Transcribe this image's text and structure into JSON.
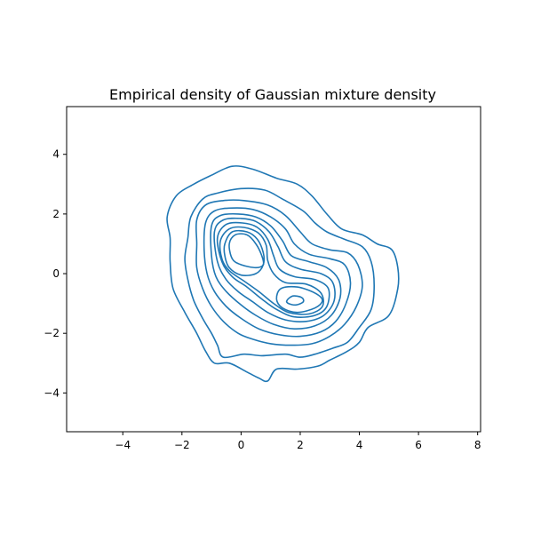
{
  "chart_data": {
    "type": "contour",
    "title": "Empirical density of Gaussian mixture density",
    "xlabel": "",
    "ylabel": "",
    "xlim": [
      -5.9,
      8.1
    ],
    "ylim": [
      -5.3,
      5.6
    ],
    "xticks": [
      -4,
      -2,
      0,
      2,
      4,
      6,
      8
    ],
    "yticks": [
      -4,
      -2,
      0,
      2,
      4
    ],
    "grid": false,
    "legend": "none",
    "line_color": "#1f77b4",
    "levels": [
      {
        "name": "level-1",
        "points": [
          [
            -2.5,
            1.9
          ],
          [
            -2.2,
            2.6
          ],
          [
            -1.6,
            3.0
          ],
          [
            -1.0,
            3.3
          ],
          [
            -0.3,
            3.6
          ],
          [
            0.4,
            3.5
          ],
          [
            1.2,
            3.2
          ],
          [
            1.9,
            3.0
          ],
          [
            2.4,
            2.6
          ],
          [
            2.9,
            2.0
          ],
          [
            3.4,
            1.5
          ],
          [
            4.1,
            1.3
          ],
          [
            4.6,
            1.0
          ],
          [
            5.1,
            0.8
          ],
          [
            5.3,
            0.2
          ],
          [
            5.3,
            -0.5
          ],
          [
            5.0,
            -1.4
          ],
          [
            4.3,
            -1.8
          ],
          [
            4.0,
            -2.3
          ],
          [
            3.6,
            -2.6
          ],
          [
            3.0,
            -2.9
          ],
          [
            2.6,
            -3.1
          ],
          [
            1.9,
            -3.2
          ],
          [
            1.2,
            -3.2
          ],
          [
            0.9,
            -3.6
          ],
          [
            0.6,
            -3.5
          ],
          [
            0.2,
            -3.3
          ],
          [
            -0.4,
            -3.0
          ],
          [
            -0.9,
            -3.0
          ],
          [
            -1.2,
            -2.6
          ],
          [
            -1.5,
            -2.0
          ],
          [
            -1.9,
            -1.3
          ],
          [
            -2.3,
            -0.5
          ],
          [
            -2.4,
            0.4
          ],
          [
            -2.4,
            1.2
          ],
          [
            -2.5,
            1.9
          ]
        ]
      },
      {
        "name": "level-2",
        "points": [
          [
            -1.7,
            1.9
          ],
          [
            -1.3,
            2.5
          ],
          [
            -0.8,
            2.7
          ],
          [
            0.0,
            2.85
          ],
          [
            0.8,
            2.8
          ],
          [
            1.4,
            2.5
          ],
          [
            2.1,
            2.1
          ],
          [
            2.5,
            1.7
          ],
          [
            2.9,
            1.4
          ],
          [
            3.5,
            1.15
          ],
          [
            4.1,
            0.9
          ],
          [
            4.4,
            0.4
          ],
          [
            4.5,
            -0.4
          ],
          [
            4.4,
            -1.2
          ],
          [
            4.0,
            -1.8
          ],
          [
            3.6,
            -2.3
          ],
          [
            3.1,
            -2.5
          ],
          [
            2.5,
            -2.7
          ],
          [
            2.0,
            -2.8
          ],
          [
            1.5,
            -2.7
          ],
          [
            0.7,
            -2.75
          ],
          [
            0.1,
            -2.7
          ],
          [
            -0.6,
            -2.8
          ],
          [
            -0.8,
            -2.4
          ],
          [
            -1.0,
            -2.0
          ],
          [
            -1.3,
            -1.5
          ],
          [
            -1.6,
            -0.9
          ],
          [
            -1.8,
            -0.2
          ],
          [
            -1.9,
            0.5
          ],
          [
            -1.8,
            1.2
          ],
          [
            -1.7,
            1.9
          ]
        ]
      },
      {
        "name": "level-3",
        "points": [
          [
            -1.5,
            1.8
          ],
          [
            -1.2,
            2.3
          ],
          [
            -0.6,
            2.45
          ],
          [
            0.1,
            2.45
          ],
          [
            0.9,
            2.3
          ],
          [
            1.5,
            1.95
          ],
          [
            2.0,
            1.4
          ],
          [
            2.4,
            1.0
          ],
          [
            3.0,
            0.8
          ],
          [
            3.6,
            0.7
          ],
          [
            3.95,
            0.3
          ],
          [
            4.1,
            -0.4
          ],
          [
            3.9,
            -1.1
          ],
          [
            3.5,
            -1.7
          ],
          [
            3.0,
            -2.1
          ],
          [
            2.4,
            -2.35
          ],
          [
            1.7,
            -2.4
          ],
          [
            1.0,
            -2.35
          ],
          [
            0.4,
            -2.2
          ],
          [
            -0.1,
            -2.0
          ],
          [
            -0.6,
            -1.6
          ],
          [
            -1.0,
            -1.1
          ],
          [
            -1.3,
            -0.5
          ],
          [
            -1.5,
            0.2
          ],
          [
            -1.5,
            1.0
          ],
          [
            -1.5,
            1.8
          ]
        ]
      },
      {
        "name": "level-4",
        "points": [
          [
            -1.2,
            1.7
          ],
          [
            -0.9,
            2.1
          ],
          [
            -0.3,
            2.2
          ],
          [
            0.4,
            2.15
          ],
          [
            1.0,
            1.9
          ],
          [
            1.5,
            1.5
          ],
          [
            1.8,
            1.0
          ],
          [
            2.3,
            0.65
          ],
          [
            3.0,
            0.5
          ],
          [
            3.5,
            0.3
          ],
          [
            3.7,
            -0.3
          ],
          [
            3.55,
            -1.0
          ],
          [
            3.2,
            -1.6
          ],
          [
            2.7,
            -1.95
          ],
          [
            2.0,
            -2.1
          ],
          [
            1.3,
            -2.05
          ],
          [
            0.6,
            -1.85
          ],
          [
            0.0,
            -1.5
          ],
          [
            -0.5,
            -1.1
          ],
          [
            -0.9,
            -0.6
          ],
          [
            -1.15,
            0.0
          ],
          [
            -1.25,
            0.8
          ],
          [
            -1.2,
            1.7
          ]
        ]
      },
      {
        "name": "level-5",
        "points": [
          [
            -1.0,
            1.6
          ],
          [
            -0.7,
            1.95
          ],
          [
            -0.1,
            2.0
          ],
          [
            0.5,
            1.9
          ],
          [
            1.0,
            1.6
          ],
          [
            1.4,
            1.1
          ],
          [
            1.7,
            0.6
          ],
          [
            2.3,
            0.4
          ],
          [
            2.9,
            0.2
          ],
          [
            3.3,
            -0.2
          ],
          [
            3.35,
            -0.8
          ],
          [
            3.05,
            -1.4
          ],
          [
            2.5,
            -1.75
          ],
          [
            1.8,
            -1.85
          ],
          [
            1.1,
            -1.7
          ],
          [
            0.5,
            -1.4
          ],
          [
            0.0,
            -1.05
          ],
          [
            -0.5,
            -0.6
          ],
          [
            -0.85,
            -0.1
          ],
          [
            -1.0,
            0.6
          ],
          [
            -1.0,
            1.6
          ]
        ]
      },
      {
        "name": "level-6",
        "points": [
          [
            -0.9,
            1.4
          ],
          [
            -0.6,
            1.8
          ],
          [
            0.0,
            1.85
          ],
          [
            0.5,
            1.75
          ],
          [
            0.95,
            1.4
          ],
          [
            1.25,
            0.9
          ],
          [
            1.5,
            0.4
          ],
          [
            2.0,
            0.15
          ],
          [
            2.7,
            0.0
          ],
          [
            3.1,
            -0.3
          ],
          [
            3.15,
            -0.9
          ],
          [
            2.8,
            -1.4
          ],
          [
            2.2,
            -1.6
          ],
          [
            1.5,
            -1.55
          ],
          [
            0.9,
            -1.3
          ],
          [
            0.4,
            -0.95
          ],
          [
            -0.1,
            -0.6
          ],
          [
            -0.5,
            -0.2
          ],
          [
            -0.8,
            0.4
          ],
          [
            -0.9,
            1.4
          ]
        ]
      },
      {
        "name": "level-7",
        "points": [
          [
            -0.8,
            1.2
          ],
          [
            -0.5,
            1.65
          ],
          [
            0.05,
            1.7
          ],
          [
            0.55,
            1.55
          ],
          [
            0.9,
            1.15
          ],
          [
            1.1,
            0.6
          ],
          [
            1.3,
            0.15
          ],
          [
            1.8,
            -0.1
          ],
          [
            2.5,
            -0.2
          ],
          [
            2.95,
            -0.5
          ],
          [
            2.9,
            -1.1
          ],
          [
            2.5,
            -1.4
          ],
          [
            1.8,
            -1.45
          ],
          [
            1.2,
            -1.2
          ],
          [
            0.7,
            -0.85
          ],
          [
            0.2,
            -0.45
          ],
          [
            -0.3,
            -0.1
          ],
          [
            -0.65,
            0.4
          ],
          [
            -0.8,
            1.2
          ]
        ]
      },
      {
        "name": "level-8",
        "points": [
          [
            -0.7,
            1.1
          ],
          [
            -0.4,
            1.5
          ],
          [
            0.1,
            1.55
          ],
          [
            0.6,
            1.35
          ],
          [
            0.85,
            0.95
          ],
          [
            0.9,
            0.45
          ],
          [
            1.1,
            0.0
          ],
          [
            1.5,
            -0.3
          ],
          [
            2.2,
            -0.35
          ],
          [
            2.7,
            -0.65
          ],
          [
            2.75,
            -1.1
          ],
          [
            2.3,
            -1.35
          ],
          [
            1.6,
            -1.3
          ],
          [
            1.1,
            -1.0
          ],
          [
            0.6,
            -0.6
          ],
          [
            0.1,
            -0.25
          ],
          [
            -0.4,
            0.1
          ],
          [
            -0.65,
            0.5
          ],
          [
            -0.7,
            1.1
          ]
        ]
      },
      {
        "name": "level-9",
        "points": [
          [
            -0.55,
            1.0
          ],
          [
            -0.3,
            1.4
          ],
          [
            0.2,
            1.4
          ],
          [
            0.55,
            1.15
          ],
          [
            0.75,
            0.7
          ],
          [
            0.75,
            0.3
          ],
          [
            0.5,
            0.0
          ],
          [
            0.0,
            -0.05
          ],
          [
            -0.4,
            0.2
          ],
          [
            -0.55,
            0.6
          ],
          [
            -0.55,
            1.0
          ]
        ]
      },
      {
        "name": "level-10",
        "points": [
          [
            1.2,
            -0.85
          ],
          [
            1.35,
            -0.5
          ],
          [
            1.9,
            -0.45
          ],
          [
            2.5,
            -0.65
          ],
          [
            2.75,
            -0.9
          ],
          [
            2.5,
            -1.15
          ],
          [
            1.9,
            -1.3
          ],
          [
            1.4,
            -1.15
          ],
          [
            1.2,
            -0.85
          ]
        ]
      },
      {
        "name": "level-11",
        "points": [
          [
            -0.4,
            1.0
          ],
          [
            -0.2,
            1.3
          ],
          [
            0.2,
            1.3
          ],
          [
            0.5,
            1.0
          ],
          [
            0.7,
            0.6
          ],
          [
            0.75,
            0.3
          ],
          [
            0.5,
            0.2
          ],
          [
            0.0,
            0.3
          ],
          [
            -0.3,
            0.5
          ],
          [
            -0.4,
            1.0
          ]
        ]
      },
      {
        "name": "level-12",
        "points": [
          [
            1.55,
            -0.9
          ],
          [
            1.75,
            -0.75
          ],
          [
            2.05,
            -0.8
          ],
          [
            2.1,
            -0.95
          ],
          [
            1.85,
            -1.05
          ],
          [
            1.6,
            -1.0
          ],
          [
            1.55,
            -0.9
          ]
        ]
      }
    ]
  }
}
